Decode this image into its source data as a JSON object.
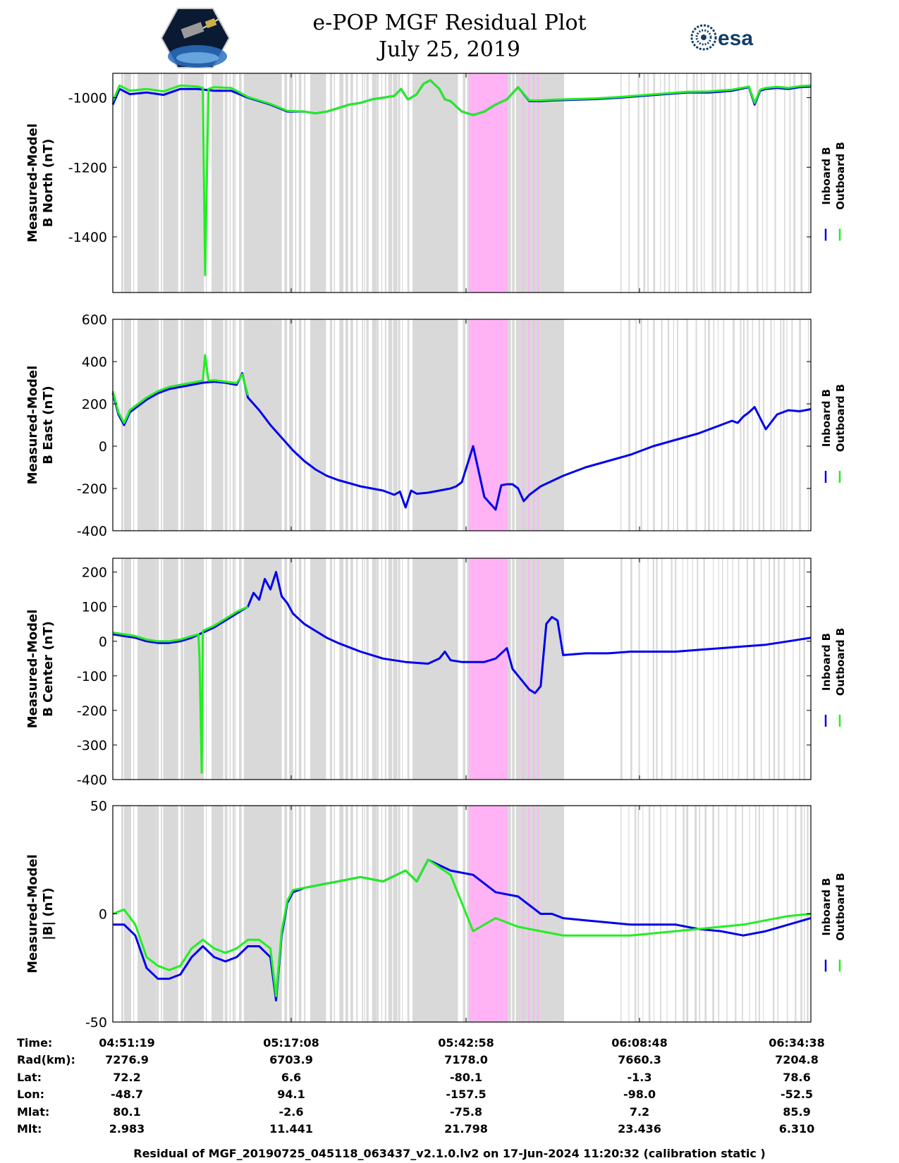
{
  "header": {
    "title": "e-POP MGF Residual Plot",
    "subtitle": "July 25, 2019",
    "logo_left_icon": "cassiope-mission-logo-icon",
    "logo_right_icon": "esa-logo-icon",
    "logo_right_text": "esa"
  },
  "colors": {
    "inboard": "#0000ee",
    "outboard": "#22ee22",
    "gap_shade": "#d9d9d9",
    "highlight": "#ffb3f5"
  },
  "chart_data": [
    {
      "type": "line",
      "title": "",
      "ylabel": "Measured-Model B North (nT)",
      "ylabel_lines": [
        "Measured-Model",
        "B North (nT)"
      ],
      "ylim": [
        -1560,
        -930
      ],
      "yticks": [
        -1000,
        -1200,
        -1400
      ],
      "xlim": [
        0,
        6200
      ],
      "legend": [
        "Inboard B",
        "Outboard B"
      ],
      "legend_position": "right",
      "series": [
        {
          "name": "Inboard B",
          "x": [
            0,
            60,
            150,
            300,
            450,
            600,
            750,
            900,
            1050,
            1200,
            1300,
            1400,
            1550,
            1700,
            1800,
            1900,
            2000,
            2100,
            2200,
            2300,
            2400,
            2500,
            2560,
            2620,
            2650,
            2700,
            2760,
            2820,
            2900,
            2950,
            3000,
            3100,
            3200,
            3300,
            3400,
            3500,
            3600,
            3700,
            3800,
            3900,
            4000,
            4100,
            4200,
            4300,
            4500,
            4700,
            4900,
            5100,
            5300,
            5500,
            5650,
            5700,
            5750,
            5800,
            5900,
            6000,
            6100,
            6200
          ],
          "values": [
            -1020,
            -975,
            -990,
            -985,
            -992,
            -975,
            -975,
            -980,
            -980,
            -1000,
            -1010,
            -1020,
            -1040,
            -1040,
            -1045,
            -1040,
            -1030,
            -1020,
            -1015,
            -1005,
            -1000,
            -995,
            -975,
            -1005,
            -1000,
            -990,
            -960,
            -950,
            -975,
            -1005,
            -1010,
            -1040,
            -1050,
            -1040,
            -1020,
            -1005,
            -970,
            -1010,
            -1010,
            -1008,
            -1007,
            -1006,
            -1005,
            -1004,
            -1000,
            -995,
            -990,
            -985,
            -985,
            -980,
            -970,
            -1020,
            -980,
            -975,
            -972,
            -975,
            -970,
            -968
          ]
        },
        {
          "name": "Outboard B",
          "x": [
            0,
            60,
            150,
            300,
            450,
            600,
            750,
            800,
            820,
            850,
            900,
            1050,
            1200,
            1300,
            1400,
            1550,
            1700,
            1800,
            1900,
            2000,
            2100,
            2200,
            2300,
            2400,
            2500,
            2560,
            2620,
            2650,
            2700,
            2760,
            2820,
            2900,
            2950,
            3000,
            3100,
            3200,
            3300,
            3400,
            3500,
            3600,
            3700,
            3800,
            3900,
            4000,
            4100,
            4200,
            4300,
            4500,
            4700,
            4900,
            5100,
            5300,
            5500,
            5650,
            5700,
            5750,
            5800,
            5900,
            6000,
            6100,
            6200
          ],
          "values": [
            -1010,
            -965,
            -980,
            -975,
            -982,
            -965,
            -968,
            -972,
            -1510,
            -975,
            -970,
            -972,
            -998,
            -1008,
            -1018,
            -1038,
            -1040,
            -1045,
            -1040,
            -1030,
            -1020,
            -1015,
            -1005,
            -1000,
            -995,
            -975,
            -1005,
            -1000,
            -990,
            -960,
            -950,
            -975,
            -1005,
            -1010,
            -1040,
            -1050,
            -1040,
            -1020,
            -1005,
            -970,
            -1008,
            -1008,
            -1006,
            -1005,
            -1004,
            -1003,
            -1002,
            -998,
            -993,
            -988,
            -983,
            -982,
            -977,
            -968,
            -1015,
            -977,
            -972,
            -969,
            -972,
            -967,
            -965
          ]
        }
      ]
    },
    {
      "type": "line",
      "title": "",
      "ylabel": "Measured-Model B East (nT)",
      "ylabel_lines": [
        "Measured-Model",
        "B East (nT)"
      ],
      "ylim": [
        -400,
        600
      ],
      "yticks": [
        600,
        400,
        200,
        0,
        -200,
        -400
      ],
      "xlim": [
        0,
        6200
      ],
      "legend": [
        "Inboard B",
        "Outboard B"
      ],
      "legend_position": "right",
      "series": [
        {
          "name": "Inboard B",
          "x": [
            0,
            50,
            100,
            150,
            200,
            250,
            300,
            400,
            500,
            600,
            700,
            800,
            900,
            1000,
            1100,
            1150,
            1200,
            1300,
            1400,
            1500,
            1600,
            1700,
            1800,
            1900,
            2000,
            2200,
            2400,
            2500,
            2550,
            2600,
            2650,
            2700,
            2800,
            2900,
            3000,
            3050,
            3100,
            3200,
            3300,
            3400,
            3450,
            3500,
            3550,
            3600,
            3650,
            3700,
            3800,
            4000,
            4200,
            4400,
            4600,
            4800,
            5000,
            5200,
            5400,
            5500,
            5550,
            5600,
            5650,
            5700,
            5800,
            5900,
            6000,
            6100,
            6200
          ],
          "values": [
            250,
            150,
            100,
            160,
            180,
            200,
            220,
            250,
            270,
            280,
            290,
            300,
            305,
            300,
            290,
            345,
            230,
            170,
            100,
            40,
            -20,
            -70,
            -110,
            -140,
            -160,
            -190,
            -210,
            -230,
            -215,
            -290,
            -210,
            -225,
            -220,
            -210,
            -200,
            -190,
            -170,
            0,
            -240,
            -300,
            -185,
            -180,
            -180,
            -200,
            -260,
            -230,
            -190,
            -140,
            -100,
            -70,
            -40,
            0,
            30,
            60,
            100,
            120,
            110,
            140,
            160,
            185,
            80,
            150,
            170,
            165,
            175
          ]
        },
        {
          "name": "Outboard B",
          "x": [
            0,
            50,
            100,
            150,
            200,
            250,
            300,
            400,
            500,
            600,
            700,
            800,
            820,
            850,
            900,
            1000,
            1100,
            1150,
            1200
          ],
          "values": [
            260,
            160,
            110,
            170,
            190,
            210,
            230,
            260,
            280,
            290,
            300,
            310,
            430,
            310,
            312,
            305,
            298,
            340,
            240
          ]
        }
      ]
    },
    {
      "type": "line",
      "title": "",
      "ylabel": "Measured-Model B Center (nT)",
      "ylabel_lines": [
        "Measured-Model",
        "B Center (nT)"
      ],
      "ylim": [
        -400,
        240
      ],
      "yticks": [
        200,
        100,
        0,
        -100,
        -200,
        -300,
        -400
      ],
      "xlim": [
        0,
        6200
      ],
      "legend": [
        "Inboard B",
        "Outboard B"
      ],
      "legend_position": "right",
      "series": [
        {
          "name": "Inboard B",
          "x": [
            0,
            100,
            200,
            300,
            400,
            500,
            600,
            700,
            800,
            900,
            1000,
            1100,
            1200,
            1250,
            1300,
            1350,
            1400,
            1450,
            1500,
            1550,
            1600,
            1700,
            1800,
            1900,
            2000,
            2200,
            2400,
            2600,
            2800,
            2900,
            2950,
            3000,
            3100,
            3200,
            3300,
            3400,
            3500,
            3550,
            3600,
            3650,
            3700,
            3750,
            3800,
            3850,
            3900,
            3950,
            4000,
            4200,
            4400,
            4600,
            4800,
            5000,
            5200,
            5400,
            5600,
            5800,
            6000,
            6200
          ],
          "values": [
            20,
            15,
            10,
            0,
            -5,
            -5,
            0,
            10,
            25,
            40,
            60,
            80,
            100,
            140,
            120,
            180,
            150,
            200,
            130,
            110,
            80,
            50,
            30,
            10,
            -5,
            -30,
            -50,
            -60,
            -65,
            -50,
            -30,
            -55,
            -60,
            -60,
            -60,
            -50,
            -20,
            -80,
            -100,
            -120,
            -140,
            -150,
            -130,
            50,
            70,
            60,
            -40,
            -35,
            -35,
            -30,
            -30,
            -30,
            -25,
            -20,
            -15,
            -10,
            0,
            10
          ]
        },
        {
          "name": "Outboard B",
          "x": [
            0,
            100,
            200,
            300,
            400,
            500,
            600,
            700,
            760,
            770,
            790,
            800,
            900,
            1000,
            1100,
            1200
          ],
          "values": [
            25,
            20,
            15,
            5,
            0,
            0,
            5,
            15,
            20,
            -50,
            -380,
            30,
            45,
            65,
            85,
            100
          ]
        }
      ]
    },
    {
      "type": "line",
      "title": "",
      "ylabel": "Measured-Model |B| (nT)",
      "ylabel_lines": [
        "Measured-Model",
        "|B| (nT)"
      ],
      "ylim": [
        -50,
        50
      ],
      "yticks": [
        50,
        0,
        -50
      ],
      "xlim": [
        0,
        6200
      ],
      "legend": [
        "Inboard B",
        "Outboard B"
      ],
      "legend_position": "right",
      "series": [
        {
          "name": "Inboard B",
          "x": [
            0,
            100,
            200,
            300,
            400,
            500,
            600,
            700,
            800,
            900,
            1000,
            1100,
            1200,
            1300,
            1400,
            1450,
            1500,
            1550,
            1600,
            1700,
            1800,
            1900,
            2000,
            2200,
            2400,
            2600,
            2700,
            2800,
            3000,
            3200,
            3400,
            3600,
            3800,
            3900,
            4000,
            4200,
            4400,
            4600,
            4800,
            5000,
            5200,
            5400,
            5600,
            5800,
            6000,
            6200
          ],
          "values": [
            -5,
            -5,
            -10,
            -25,
            -30,
            -30,
            -28,
            -20,
            -15,
            -20,
            -22,
            -20,
            -15,
            -15,
            -20,
            -40,
            -10,
            5,
            10,
            12,
            13,
            14,
            15,
            17,
            15,
            20,
            15,
            25,
            20,
            18,
            10,
            8,
            0,
            0,
            -2,
            -3,
            -4,
            -5,
            -5,
            -5,
            -7,
            -8,
            -10,
            -8,
            -5,
            -2
          ]
        },
        {
          "name": "Outboard B",
          "x": [
            0,
            100,
            200,
            300,
            400,
            500,
            600,
            700,
            800,
            900,
            1000,
            1100,
            1200,
            1300,
            1400,
            1450,
            1500,
            1550,
            1600,
            1700,
            1800,
            1900,
            2000,
            2200,
            2400,
            2600,
            2700,
            2800,
            3000,
            3200,
            3400,
            3600,
            3800,
            3900,
            4000,
            4200,
            4400,
            4600,
            4800,
            5000,
            5200,
            5400,
            5600,
            5800,
            6000,
            6200
          ],
          "values": [
            0,
            2,
            -5,
            -20,
            -24,
            -26,
            -24,
            -16,
            -12,
            -16,
            -18,
            -16,
            -12,
            -12,
            -16,
            -38,
            -8,
            6,
            11,
            12,
            13,
            14,
            15,
            17,
            15,
            20,
            15,
            25,
            18,
            -8,
            -2,
            -6,
            -8,
            -9,
            -10,
            -10,
            -10,
            -10,
            -9,
            -8,
            -7,
            -6,
            -5,
            -3,
            -1,
            0
          ]
        }
      ]
    }
  ],
  "x_axis": {
    "tick_labels": [
      "04:51:19",
      "05:17:08",
      "05:42:58",
      "06:08:48",
      "06:34:38"
    ]
  },
  "ephemeris": {
    "rows": [
      {
        "label": "Time:",
        "values": [
          "04:51:19",
          "05:17:08",
          "05:42:58",
          "06:08:48",
          "06:34:38"
        ]
      },
      {
        "label": "Rad(km):",
        "values": [
          "7276.9",
          "6703.9",
          "7178.0",
          "7660.3",
          "7204.8"
        ]
      },
      {
        "label": "Lat:",
        "values": [
          "72.2",
          "6.6",
          "-80.1",
          "-1.3",
          "78.6"
        ]
      },
      {
        "label": "Lon:",
        "values": [
          "-48.7",
          "94.1",
          "-157.5",
          "-98.0",
          "-52.5"
        ]
      },
      {
        "label": "Mlat:",
        "values": [
          "80.1",
          "-2.6",
          "-75.8",
          "7.2",
          "85.9"
        ]
      },
      {
        "label": "Mlt:",
        "values": [
          "2.983",
          "11.441",
          "21.798",
          "23.436",
          "6.310"
        ]
      }
    ]
  },
  "footer": {
    "text": "Residual of MGF_20190725_045118_063437_v2.1.0.lv2 on 17-Jun-2024 11:20:32 (calibration static )"
  }
}
